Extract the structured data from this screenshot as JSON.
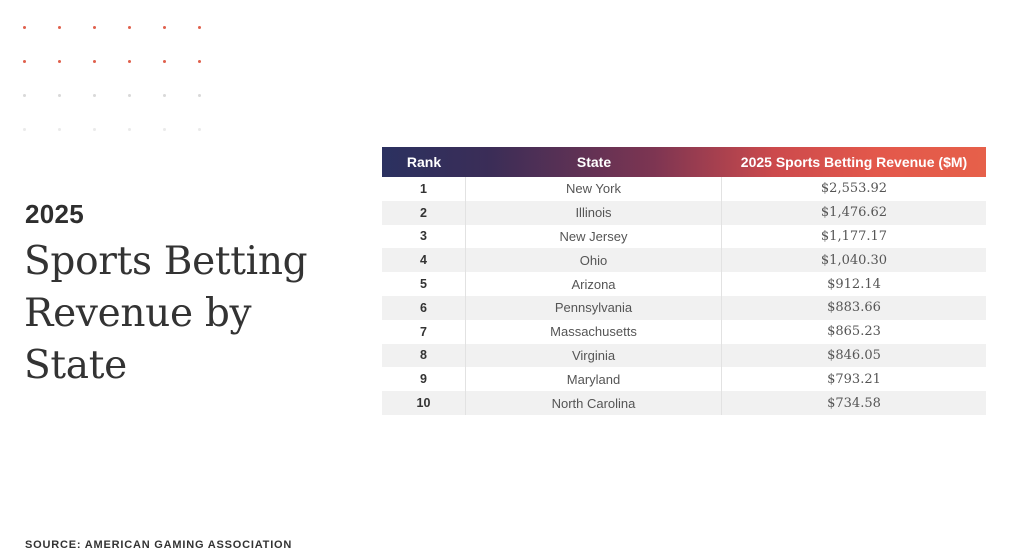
{
  "heading": {
    "year": "2025",
    "title": "Sports Betting Revenue by State"
  },
  "source": "SOURCE: AMERICAN GAMING ASSOCIATION",
  "colors": {
    "accent_dot": "#e0604c",
    "muted_dot": "#d9d9d9",
    "header_start": "#2b3160",
    "header_end": "#e6604a"
  },
  "chart_data": {
    "type": "table",
    "columns": [
      "Rank",
      "State",
      "2025 Sports Betting Revenue ($M)"
    ],
    "rows": [
      {
        "rank": "1",
        "state": "New York",
        "revenue": "$2,553.92"
      },
      {
        "rank": "2",
        "state": "Illinois",
        "revenue": "$1,476.62"
      },
      {
        "rank": "3",
        "state": "New Jersey",
        "revenue": "$1,177.17"
      },
      {
        "rank": "4",
        "state": "Ohio",
        "revenue": "$1,040.30"
      },
      {
        "rank": "5",
        "state": "Arizona",
        "revenue": "$912.14"
      },
      {
        "rank": "6",
        "state": "Pennsylvania",
        "revenue": "$883.66"
      },
      {
        "rank": "7",
        "state": "Massachusetts",
        "revenue": "$865.23"
      },
      {
        "rank": "8",
        "state": "Virginia",
        "revenue": "$846.05"
      },
      {
        "rank": "9",
        "state": "Maryland",
        "revenue": "$793.21"
      },
      {
        "rank": "10",
        "state": "North Carolina",
        "revenue": "$734.58"
      }
    ]
  }
}
